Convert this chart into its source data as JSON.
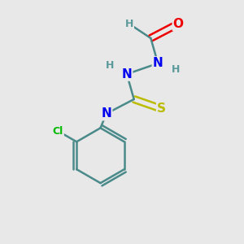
{
  "bg_color": "#e8e8e8",
  "atom_colors": {
    "C": "#4a8a8a",
    "N": "#0000ee",
    "O": "#ee0000",
    "S": "#bbbb00",
    "Cl": "#00bb00",
    "H": "#5a9a9a"
  },
  "bond_color": "#4a8a8a",
  "figsize": [
    3.0,
    3.0
  ],
  "dpi": 100
}
